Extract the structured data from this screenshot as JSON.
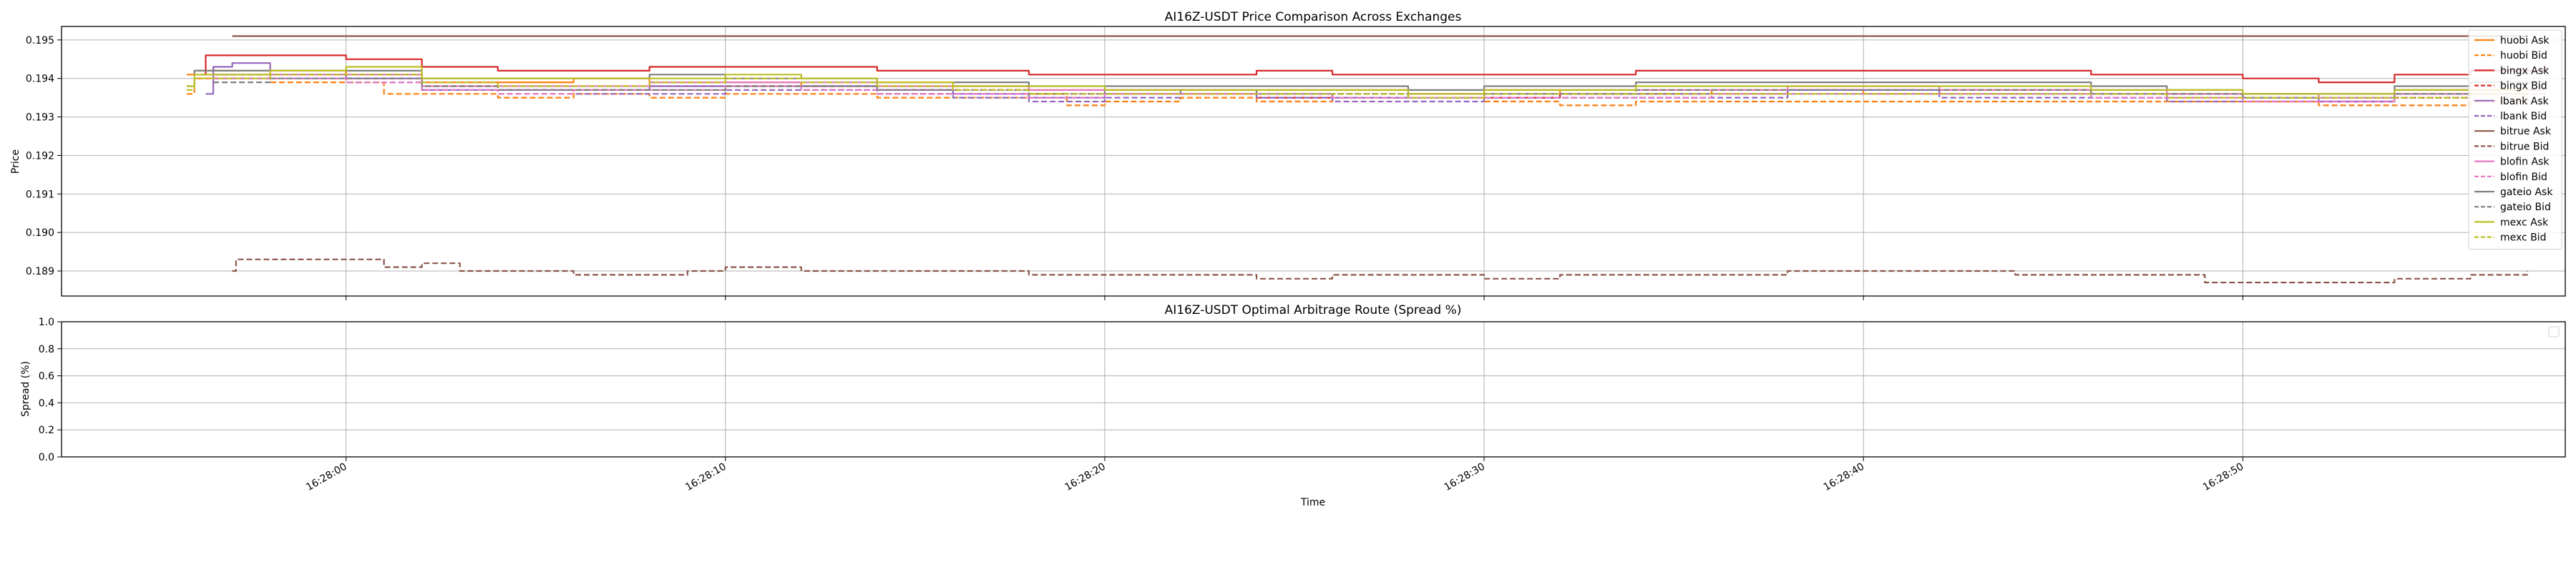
{
  "chart_data": [
    {
      "type": "line",
      "title": "AI16Z-USDT Price Comparison Across Exchanges",
      "xlabel": "",
      "ylabel": "Price",
      "ylim": [
        0.18835,
        0.19535
      ],
      "yticks": [
        "0.189",
        "0.190",
        "0.191",
        "0.192",
        "0.193",
        "0.194",
        "0.195"
      ],
      "xlim_seconds": [
        52.5,
        118.5
      ],
      "grid": true,
      "legend_position": "upper-right",
      "series": [
        {
          "name": "huobi Ask",
          "color": "#ff7f0e",
          "dash": "solid",
          "x": [
            55.8,
            56,
            58,
            60,
            62,
            64,
            66,
            68,
            70,
            72,
            74,
            76,
            78,
            80,
            82,
            84,
            86,
            88,
            90,
            92,
            94,
            96,
            98,
            100,
            102,
            104,
            106,
            108,
            110,
            112,
            114,
            116,
            117.5
          ],
          "y": [
            0.1941,
            0.1942,
            0.1942,
            0.1941,
            0.1939,
            0.1939,
            0.194,
            0.1939,
            0.1939,
            0.1938,
            0.1938,
            0.1938,
            0.1937,
            0.1937,
            0.1936,
            0.1937,
            0.1937,
            0.1936,
            0.1937,
            0.1936,
            0.1936,
            0.1937,
            0.1937,
            0.1936,
            0.1937,
            0.1937,
            0.1936,
            0.1936,
            0.1936,
            0.1936,
            0.1936,
            0.1936,
            0.1936
          ]
        },
        {
          "name": "huobi Bid",
          "color": "#ff7f0e",
          "dash": "dashed",
          "x": [
            55.8,
            56,
            58,
            60,
            61,
            62,
            64,
            66,
            68,
            70,
            72,
            74,
            76,
            78,
            79,
            80,
            82,
            84,
            86,
            88,
            90,
            92,
            94,
            96,
            98,
            100,
            102,
            104,
            106,
            108,
            110,
            112,
            114,
            116,
            117.5
          ],
          "y": [
            0.1936,
            0.194,
            0.1939,
            0.1939,
            0.1936,
            0.1936,
            0.1935,
            0.1936,
            0.1935,
            0.1936,
            0.1936,
            0.1935,
            0.1935,
            0.1936,
            0.1933,
            0.1934,
            0.1935,
            0.1934,
            0.1935,
            0.1935,
            0.1934,
            0.1933,
            0.1934,
            0.1934,
            0.1934,
            0.1934,
            0.1934,
            0.1934,
            0.1934,
            0.1934,
            0.1934,
            0.1933,
            0.1933,
            0.1934,
            0.1934
          ]
        },
        {
          "name": "bingx Ask",
          "color": "#d62728",
          "dash": "solid",
          "x": [
            56.2,
            56.3,
            58,
            60,
            62,
            64,
            66,
            68,
            70,
            72,
            74,
            76,
            78,
            80,
            82,
            84,
            86,
            88,
            90,
            92,
            94,
            96,
            98,
            100,
            102,
            104,
            106,
            108,
            110,
            112,
            113,
            114,
            116,
            118
          ],
          "y": [
            0.1941,
            0.1946,
            0.1946,
            0.1945,
            0.1943,
            0.1942,
            0.1942,
            0.1943,
            0.1943,
            0.1943,
            0.1942,
            0.1942,
            0.1941,
            0.1941,
            0.1941,
            0.1942,
            0.1941,
            0.1941,
            0.1941,
            0.1941,
            0.1942,
            0.1942,
            0.1942,
            0.1942,
            0.1942,
            0.1942,
            0.1941,
            0.1941,
            0.194,
            0.1939,
            0.1939,
            0.1941,
            0.1942,
            0.1943
          ]
        },
        {
          "name": "bingx Bid",
          "color": "#d62728",
          "dash": "dashed",
          "x": [
            56.5,
            58,
            60,
            62,
            64,
            66,
            68,
            70,
            72,
            74,
            76,
            78,
            80,
            82,
            84,
            86,
            88,
            90,
            92,
            94,
            96,
            98,
            100,
            102,
            104,
            106,
            108,
            110,
            112,
            114,
            116,
            118
          ],
          "y": [
            0.1941,
            0.1941,
            0.194,
            0.1938,
            0.1937,
            0.1937,
            0.1938,
            0.1938,
            0.1938,
            0.1937,
            0.1937,
            0.1936,
            0.1936,
            0.1936,
            0.1935,
            0.1936,
            0.1936,
            0.1935,
            0.1936,
            0.1936,
            0.1936,
            0.1937,
            0.1937,
            0.1937,
            0.1937,
            0.1936,
            0.1936,
            0.1935,
            0.1934,
            0.1935,
            0.1937,
            0.1937
          ]
        },
        {
          "name": "lbank Ask",
          "color": "#9467bd",
          "dash": "solid",
          "x": [
            56.3,
            56.5,
            57,
            58,
            60,
            62,
            64,
            66,
            68,
            70,
            72,
            74,
            76,
            78,
            80,
            82,
            84,
            86,
            88,
            90,
            92,
            94,
            96,
            98,
            100,
            102,
            104,
            106,
            108,
            110,
            112,
            114,
            116,
            118
          ],
          "y": [
            0.1936,
            0.1943,
            0.1944,
            0.1941,
            0.194,
            0.1937,
            0.1937,
            0.1937,
            0.1938,
            0.1938,
            0.1938,
            0.1937,
            0.1936,
            0.1935,
            0.1936,
            0.1937,
            0.1936,
            0.1935,
            0.1935,
            0.1936,
            0.1936,
            0.1936,
            0.1936,
            0.1937,
            0.1937,
            0.1936,
            0.1936,
            0.1936,
            0.1935,
            0.1935,
            0.1934,
            0.1937,
            0.1937,
            0.1937
          ]
        },
        {
          "name": "lbank Bid",
          "color": "#9467bd",
          "dash": "dashed",
          "x": [
            56.5,
            58,
            60,
            62,
            64,
            66,
            68,
            70,
            72,
            74,
            76,
            78,
            80,
            82,
            84,
            86,
            88,
            90,
            92,
            94,
            96,
            98,
            100,
            102,
            104,
            106,
            108,
            110,
            112,
            114,
            116,
            118
          ],
          "y": [
            0.194,
            0.194,
            0.1939,
            0.1937,
            0.1936,
            0.1936,
            0.1936,
            0.1937,
            0.1937,
            0.1936,
            0.1935,
            0.1934,
            0.1935,
            0.1936,
            0.1935,
            0.1934,
            0.1934,
            0.1935,
            0.1935,
            0.1935,
            0.1935,
            0.1936,
            0.1936,
            0.1935,
            0.1935,
            0.1935,
            0.1934,
            0.1934,
            0.1934,
            0.1936,
            0.1936,
            0.1936
          ]
        },
        {
          "name": "bitrue Ask",
          "color": "#8c564b",
          "dash": "solid",
          "x": [
            57,
            60,
            65,
            70,
            75,
            80,
            85,
            90,
            95,
            100,
            105,
            110,
            115,
            117.5
          ],
          "y": [
            0.1951,
            0.1951,
            0.1951,
            0.1951,
            0.1951,
            0.1951,
            0.1951,
            0.1951,
            0.1951,
            0.1951,
            0.1951,
            0.1951,
            0.1951,
            0.1951
          ]
        },
        {
          "name": "bitrue Bid",
          "color": "#8c564b",
          "dash": "dashed",
          "x": [
            57,
            57.1,
            58,
            60,
            61,
            62,
            63,
            64,
            66,
            68,
            69,
            70,
            72,
            74,
            76,
            78,
            80,
            82,
            83,
            84,
            86,
            88,
            90,
            92,
            94,
            96,
            98,
            100,
            102,
            104,
            106,
            108,
            109,
            110,
            112,
            114,
            116,
            117.5
          ],
          "y": [
            0.189,
            0.1893,
            0.1893,
            0.1893,
            0.1891,
            0.1892,
            0.189,
            0.189,
            0.1889,
            0.1889,
            0.189,
            0.1891,
            0.189,
            0.189,
            0.189,
            0.1889,
            0.1889,
            0.1889,
            0.1889,
            0.1888,
            0.1889,
            0.1889,
            0.1888,
            0.1889,
            0.1889,
            0.1889,
            0.189,
            0.189,
            0.189,
            0.1889,
            0.1889,
            0.1889,
            0.1887,
            0.1887,
            0.1887,
            0.1888,
            0.1889,
            0.189
          ]
        },
        {
          "name": "blofin Ask",
          "color": "#e377c2",
          "dash": "solid",
          "x": [
            56.5,
            58,
            60,
            62,
            64,
            66,
            68,
            70,
            72,
            74,
            76,
            78,
            80,
            82,
            84,
            86,
            88,
            90,
            92,
            94,
            96,
            98,
            100,
            102,
            104,
            106,
            108,
            110,
            112,
            114,
            116,
            118
          ],
          "y": [
            0.1941,
            0.1941,
            0.1941,
            0.1938,
            0.1938,
            0.1938,
            0.1939,
            0.1939,
            0.1939,
            0.1938,
            0.1938,
            0.1937,
            0.1937,
            0.1937,
            0.1937,
            0.1937,
            0.1936,
            0.1937,
            0.1937,
            0.1937,
            0.1937,
            0.1938,
            0.1938,
            0.1937,
            0.1937,
            0.1937,
            0.1936,
            0.1936,
            0.1935,
            0.1937,
            0.1937,
            0.1937
          ]
        },
        {
          "name": "blofin Bid",
          "color": "#e377c2",
          "dash": "dashed",
          "x": [
            56.5,
            58,
            60,
            62,
            64,
            66,
            68,
            70,
            72,
            74,
            76,
            78,
            80,
            82,
            84,
            86,
            88,
            90,
            92,
            94,
            96,
            98,
            100,
            102,
            104,
            106,
            108,
            110,
            112,
            114,
            116,
            118
          ],
          "y": [
            0.194,
            0.194,
            0.1939,
            0.1937,
            0.1936,
            0.1937,
            0.1937,
            0.1938,
            0.1937,
            0.1936,
            0.1936,
            0.1935,
            0.1936,
            0.1936,
            0.1936,
            0.1935,
            0.1935,
            0.1935,
            0.1935,
            0.1935,
            0.1936,
            0.1936,
            0.1936,
            0.1936,
            0.1936,
            0.1935,
            0.1935,
            0.1934,
            0.1934,
            0.1936,
            0.1936,
            0.1936
          ]
        },
        {
          "name": "gateio Ask",
          "color": "#7f7f7f",
          "dash": "solid",
          "x": [
            55.8,
            56,
            58,
            60,
            62,
            64,
            66,
            68,
            70,
            72,
            74,
            76,
            78,
            80,
            82,
            84,
            86,
            88,
            90,
            92,
            94,
            96,
            98,
            100,
            102,
            104,
            106,
            108,
            110,
            112,
            114,
            116,
            118
          ],
          "y": [
            0.1938,
            0.1942,
            0.1942,
            0.1942,
            0.194,
            0.194,
            0.194,
            0.1941,
            0.194,
            0.194,
            0.1939,
            0.1939,
            0.1938,
            0.1938,
            0.1938,
            0.1938,
            0.1938,
            0.1937,
            0.1938,
            0.1938,
            0.1939,
            0.1939,
            0.1939,
            0.1939,
            0.1939,
            0.1939,
            0.1938,
            0.1937,
            0.1936,
            0.1936,
            0.1938,
            0.1939,
            0.1939
          ]
        },
        {
          "name": "gateio Bid",
          "color": "#7f7f7f",
          "dash": "dashed",
          "x": [
            56.5,
            58,
            60,
            62,
            64,
            66,
            68,
            70,
            72,
            74,
            76,
            78,
            80,
            82,
            84,
            86,
            88,
            90,
            92,
            94,
            96,
            98,
            100,
            102,
            104,
            106,
            108,
            110,
            112,
            114,
            116,
            118
          ],
          "y": [
            0.1939,
            0.194,
            0.194,
            0.1938,
            0.1937,
            0.1937,
            0.1937,
            0.1938,
            0.1938,
            0.1937,
            0.1937,
            0.1936,
            0.1937,
            0.1937,
            0.1936,
            0.1936,
            0.1936,
            0.1936,
            0.1936,
            0.1937,
            0.1937,
            0.1937,
            0.1937,
            0.1937,
            0.1937,
            0.1936,
            0.1936,
            0.1935,
            0.1935,
            0.1936,
            0.1937,
            0.1937
          ]
        },
        {
          "name": "mexc Ask",
          "color": "#bcbd22",
          "dash": "solid",
          "x": [
            55.8,
            56,
            58,
            60,
            62,
            64,
            66,
            68,
            70,
            72,
            74,
            76,
            78,
            80,
            82,
            84,
            86,
            88,
            90,
            92,
            94,
            96,
            98,
            100,
            102,
            104,
            106,
            108,
            110,
            112,
            114,
            116,
            117.5
          ],
          "y": [
            0.1938,
            0.1941,
            0.1942,
            0.1943,
            0.194,
            0.194,
            0.194,
            0.194,
            0.1941,
            0.194,
            0.1939,
            0.1938,
            0.1938,
            0.1937,
            0.1937,
            0.1937,
            0.1937,
            0.1936,
            0.1937,
            0.1937,
            0.1938,
            0.1938,
            0.1938,
            0.1938,
            0.1938,
            0.1938,
            0.1937,
            0.1937,
            0.1936,
            0.1936,
            0.1937,
            0.1937,
            0.1937
          ]
        },
        {
          "name": "mexc Bid",
          "color": "#bcbd22",
          "dash": "dashed",
          "x": [
            55.8,
            56,
            58,
            60,
            62,
            64,
            66,
            68,
            70,
            72,
            74,
            76,
            78,
            80,
            82,
            84,
            86,
            88,
            90,
            92,
            94,
            96,
            98,
            100,
            102,
            104,
            106,
            108,
            110,
            112,
            114,
            116,
            117.5
          ],
          "y": [
            0.1937,
            0.194,
            0.1941,
            0.1941,
            0.1939,
            0.1938,
            0.1938,
            0.1939,
            0.194,
            0.1939,
            0.1938,
            0.1937,
            0.1936,
            0.1936,
            0.1936,
            0.1936,
            0.1936,
            0.1935,
            0.1936,
            0.1936,
            0.1936,
            0.1936,
            0.1936,
            0.1936,
            0.1936,
            0.1936,
            0.1936,
            0.1935,
            0.1935,
            0.1935,
            0.1935,
            0.1936,
            0.1936
          ]
        }
      ]
    },
    {
      "type": "line",
      "title": "AI16Z-USDT Optimal Arbitrage Route (Spread %)",
      "xlabel": "Time",
      "ylabel": "Spread (%)",
      "ylim": [
        0.0,
        1.0
      ],
      "yticks": [
        "0.0",
        "0.2",
        "0.4",
        "0.6",
        "0.8",
        "1.0"
      ],
      "xlim_seconds": [
        52.5,
        118.5
      ],
      "xtick_seconds": [
        60,
        70,
        80,
        90,
        100,
        110
      ],
      "xtick_labels": [
        "16:28:00",
        "16:28:10",
        "16:28:20",
        "16:28:30",
        "16:28:40",
        "16:28:50"
      ],
      "grid": true,
      "legend_position": "upper-right",
      "series": []
    }
  ]
}
